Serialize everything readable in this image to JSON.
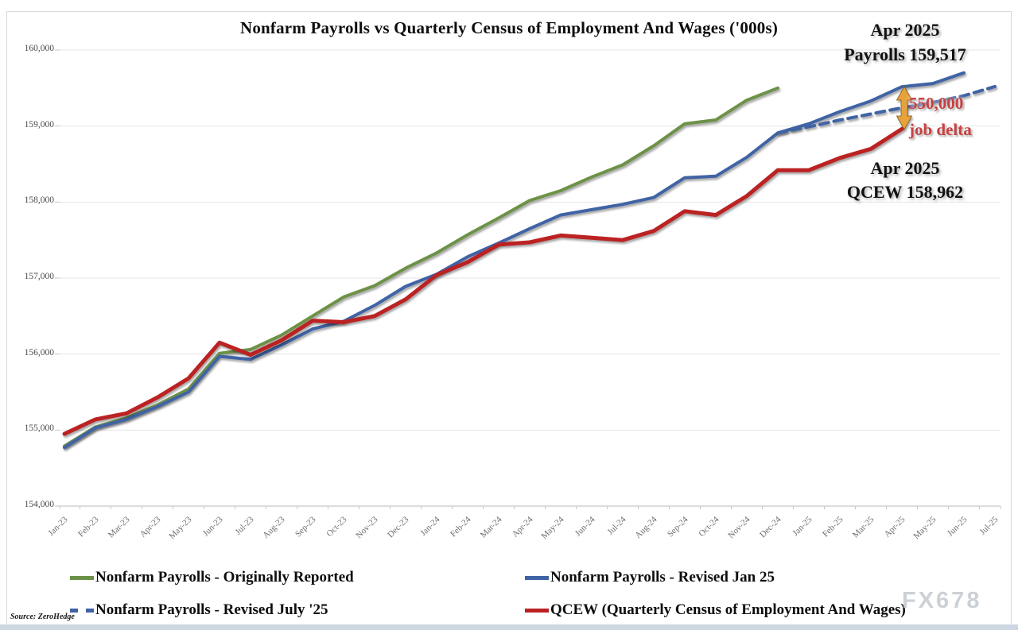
{
  "title": "Nonfarm Payrolls vs Quarterly Census of Employment And Wages ('000s)",
  "source": "Source: ZeroHedge",
  "watermark": "FX678",
  "colors": {
    "green_series": "#6C9146",
    "blue_series": "#3F63A4",
    "red_series": "#BB2024",
    "arrow_gold": "#E8A23B",
    "gridline": "#e4e4e4",
    "axis_line": "#b9b9b9",
    "annotation_red": "#c84040"
  },
  "chart_data": {
    "type": "line",
    "title": "Nonfarm Payrolls vs Quarterly Census of Employment And Wages ('000s)",
    "units": "thousands of jobs",
    "grid": true,
    "legend_position": "bottom",
    "ylim": [
      154000,
      160000
    ],
    "ytick_step": 1000,
    "ytick_labels": [
      "154,000",
      "155,000",
      "156,000",
      "157,000",
      "158,000",
      "159,000",
      "160,000"
    ],
    "x": [
      "Jan-23",
      "Feb-23",
      "Mar-23",
      "Apr-23",
      "May-23",
      "Jun-23",
      "Jul-23",
      "Aug-23",
      "Sep-23",
      "Oct-23",
      "Nov-23",
      "Dec-23",
      "Jan-24",
      "Feb-24",
      "Mar-24",
      "Apr-24",
      "May-24",
      "Jun-24",
      "Jul-24",
      "Aug-24",
      "Sep-24",
      "Oct-24",
      "Nov-24",
      "Dec-24",
      "Jan-25",
      "Feb-25",
      "Mar-25",
      "Apr-25",
      "May-25",
      "Jun-25",
      "Jul-25"
    ],
    "series": [
      {
        "name": "Nonfarm Payrolls - Originally Reported",
        "color": "#6C9146",
        "style": "solid",
        "width": 4,
        "start_index": 0,
        "values": [
          154790,
          155040,
          155160,
          155330,
          155540,
          156010,
          156060,
          156250,
          156500,
          156750,
          156900,
          157130,
          157330,
          157570,
          157790,
          158020,
          158150,
          158330,
          158490,
          158740,
          159030,
          159080,
          159340,
          159500
        ]
      },
      {
        "name": "Nonfarm Payrolls - Revised Jan 25",
        "color": "#3F63A4",
        "style": "solid",
        "width": 4,
        "start_index": 0,
        "values": [
          154770,
          155030,
          155140,
          155310,
          155500,
          155970,
          155930,
          156120,
          156330,
          156430,
          156640,
          156890,
          157050,
          157280,
          157460,
          157650,
          157830,
          157900,
          157970,
          158060,
          158320,
          158340,
          158590,
          158910,
          159030,
          159190,
          159330,
          159517,
          159560,
          159700
        ]
      },
      {
        "name": "Nonfarm Payrolls - Revised July '25",
        "color": "#3F63A4",
        "style": "dashed",
        "width": 4,
        "start_index": 23,
        "values": [
          158910,
          158990,
          159080,
          159160,
          159240,
          159310,
          159400,
          159520
        ]
      },
      {
        "name": "QCEW (Quarterly Census of Employment And Wages)",
        "color": "#BB2024",
        "style": "solid",
        "width": 5,
        "start_index": 0,
        "values": [
          154950,
          155140,
          155220,
          155430,
          155680,
          156150,
          155990,
          156180,
          156440,
          156420,
          156500,
          156720,
          157040,
          157210,
          157440,
          157470,
          157560,
          157530,
          157500,
          157620,
          157880,
          157830,
          158080,
          158420,
          158420,
          158580,
          158700,
          158962
        ]
      }
    ],
    "annotations": {
      "payrolls": {
        "line1": "Apr 2025",
        "line2": "Payrolls 159,517"
      },
      "delta": {
        "line1": "550,000",
        "line2": "job delta"
      },
      "qcew": {
        "line1": "Apr 2025",
        "line2": "QCEW 158,962"
      }
    }
  }
}
